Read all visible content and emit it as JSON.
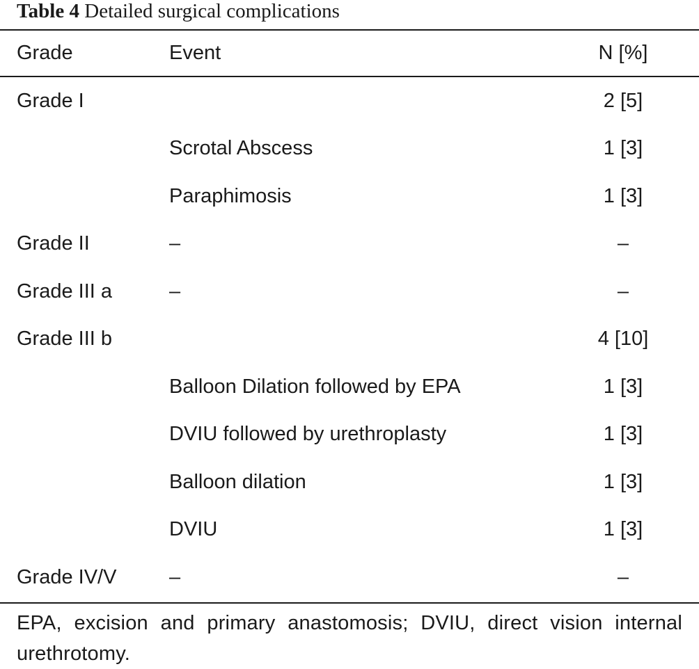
{
  "caption": {
    "label": "Table 4",
    "title": "Detailed surgical complications"
  },
  "headers": {
    "grade": "Grade",
    "event": "Event",
    "n": "N [%]"
  },
  "rows": [
    {
      "grade": "Grade I",
      "event": "",
      "n": "2 [5]"
    },
    {
      "grade": "",
      "event": "Scrotal Abscess",
      "n": "1 [3]"
    },
    {
      "grade": "",
      "event": "Paraphimosis",
      "n": "1 [3]"
    },
    {
      "grade": "Grade II",
      "event": "–",
      "n": "–"
    },
    {
      "grade": "Grade III a",
      "event": "–",
      "n": "–"
    },
    {
      "grade": "Grade III b",
      "event": "",
      "n": "4 [10]"
    },
    {
      "grade": "",
      "event": "Balloon Dilation followed by EPA",
      "n": "1 [3]"
    },
    {
      "grade": "",
      "event": "DVIU followed by urethroplasty",
      "n": "1 [3]"
    },
    {
      "grade": "",
      "event": "Balloon dilation",
      "n": "1 [3]"
    },
    {
      "grade": "",
      "event": "DVIU",
      "n": "1 [3]"
    },
    {
      "grade": "Grade IV/V",
      "event": "–",
      "n": "–"
    }
  ],
  "footnote": "EPA, excision and primary anastomosis; DVIU, direct vision internal urethrotomy."
}
